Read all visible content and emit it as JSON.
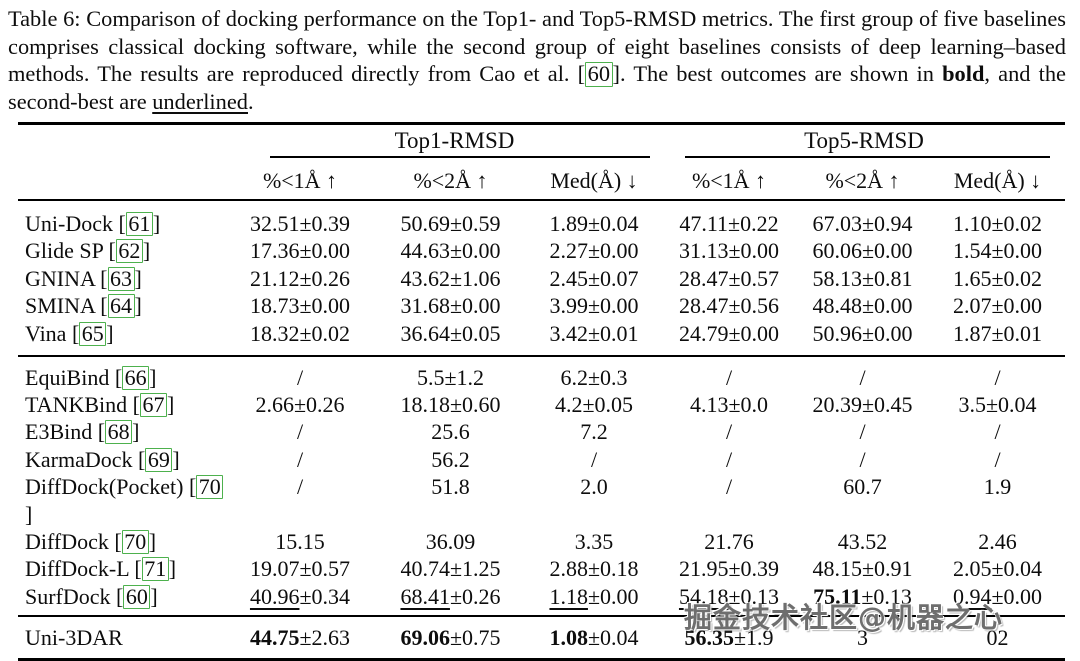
{
  "caption": {
    "part1": "Table 6: Comparison of docking performance on the Top1- and Top5-RMSD metrics. The first group of five baselines comprises classical docking software, while the second group of eight baselines consists of deep learning–based methods. The results are reproduced directly from Cao et al. ",
    "cite_open": "[",
    "cite": "60",
    "cite_close": "]",
    "part2": ". The best outcomes are shown in ",
    "bold_word": "bold",
    "part3": ", and the second-best are ",
    "underline_word": "underlined",
    "part4": "."
  },
  "table": {
    "group_headers": [
      "Top1-RMSD",
      "Top5-RMSD"
    ],
    "sub_headers": [
      "%<1Å ↑",
      "%<2Å ↑",
      "Med(Å) ↓",
      "%<1Å ↑",
      "%<2Å ↑",
      "Med(Å) ↓"
    ],
    "bracket_open": "[",
    "bracket_close": "]",
    "accent_green": "#4db14d",
    "rows": [
      {
        "group": 1,
        "name": "Uni-Dock",
        "cite": "61",
        "cells": [
          {
            "m": "32.51",
            "r": "±0.39"
          },
          {
            "m": "50.69",
            "r": "±0.59"
          },
          {
            "m": "1.89",
            "r": "±0.04"
          },
          {
            "m": "47.11",
            "r": "±0.22"
          },
          {
            "m": "67.03",
            "r": "±0.94"
          },
          {
            "m": "1.10",
            "r": "±0.02"
          }
        ]
      },
      {
        "group": 1,
        "name": "Glide SP",
        "cite": "62",
        "cells": [
          {
            "m": "17.36",
            "r": "±0.00"
          },
          {
            "m": "44.63",
            "r": "±0.00"
          },
          {
            "m": "2.27",
            "r": "±0.00"
          },
          {
            "m": "31.13",
            "r": "±0.00"
          },
          {
            "m": "60.06",
            "r": "±0.00"
          },
          {
            "m": "1.54",
            "r": "±0.00"
          }
        ]
      },
      {
        "group": 1,
        "name": "GNINA",
        "cite": "63",
        "cells": [
          {
            "m": "21.12",
            "r": "±0.26"
          },
          {
            "m": "43.62",
            "r": "±1.06"
          },
          {
            "m": "2.45",
            "r": "±0.07"
          },
          {
            "m": "28.47",
            "r": "±0.57"
          },
          {
            "m": "58.13",
            "r": "±0.81"
          },
          {
            "m": "1.65",
            "r": "±0.02"
          }
        ]
      },
      {
        "group": 1,
        "name": "SMINA",
        "cite": "64",
        "cells": [
          {
            "m": "18.73",
            "r": "±0.00"
          },
          {
            "m": "31.68",
            "r": "±0.00"
          },
          {
            "m": "3.99",
            "r": "±0.00"
          },
          {
            "m": "28.47",
            "r": "±0.56"
          },
          {
            "m": "48.48",
            "r": "±0.00"
          },
          {
            "m": "2.07",
            "r": "±0.00"
          }
        ]
      },
      {
        "group": 1,
        "name": "Vina",
        "cite": "65",
        "cells": [
          {
            "m": "18.32",
            "r": "±0.02"
          },
          {
            "m": "36.64",
            "r": "±0.05"
          },
          {
            "m": "3.42",
            "r": "±0.01"
          },
          {
            "m": "24.79",
            "r": "±0.00"
          },
          {
            "m": "50.96",
            "r": "±0.00"
          },
          {
            "m": "1.87",
            "r": "±0.01"
          }
        ]
      },
      {
        "group": 2,
        "name": "EquiBind",
        "cite": "66",
        "cells": [
          {
            "m": "/"
          },
          {
            "m": "5.5",
            "r": "±1.2"
          },
          {
            "m": "6.2",
            "r": "±0.3"
          },
          {
            "m": "/"
          },
          {
            "m": "/"
          },
          {
            "m": "/"
          }
        ]
      },
      {
        "group": 2,
        "name": "TANKBind",
        "cite": "67",
        "cells": [
          {
            "m": "2.66",
            "r": "±0.26"
          },
          {
            "m": "18.18",
            "r": "±0.60"
          },
          {
            "m": "4.2",
            "r": "±0.05"
          },
          {
            "m": "4.13",
            "r": "±0.0"
          },
          {
            "m": "20.39",
            "r": "±0.45"
          },
          {
            "m": "3.5",
            "r": "±0.04"
          }
        ]
      },
      {
        "group": 2,
        "name": "E3Bind",
        "cite": "68",
        "cells": [
          {
            "m": "/"
          },
          {
            "m": "25.6"
          },
          {
            "m": "7.2"
          },
          {
            "m": "/"
          },
          {
            "m": "/"
          },
          {
            "m": "/"
          }
        ]
      },
      {
        "group": 2,
        "name": "KarmaDock",
        "cite": "69",
        "cells": [
          {
            "m": "/"
          },
          {
            "m": "56.2"
          },
          {
            "m": "/"
          },
          {
            "m": "/"
          },
          {
            "m": "/"
          },
          {
            "m": "/"
          }
        ]
      },
      {
        "group": 2,
        "name": "DiffDock(Pocket)",
        "cite": "70",
        "cells": [
          {
            "m": "/"
          },
          {
            "m": "51.8"
          },
          {
            "m": "2.0"
          },
          {
            "m": "/"
          },
          {
            "m": "60.7"
          },
          {
            "m": "1.9"
          }
        ]
      },
      {
        "group": 2,
        "name": "DiffDock",
        "cite": "70",
        "cells": [
          {
            "m": "15.15"
          },
          {
            "m": "36.09"
          },
          {
            "m": "3.35"
          },
          {
            "m": "21.76"
          },
          {
            "m": "43.52"
          },
          {
            "m": "2.46"
          }
        ]
      },
      {
        "group": 2,
        "name": "DiffDock-L",
        "cite": "71",
        "cells": [
          {
            "m": "19.07",
            "r": "±0.57"
          },
          {
            "m": "40.74",
            "r": "±1.25"
          },
          {
            "m": "2.88",
            "r": "±0.18"
          },
          {
            "m": "21.95",
            "r": "±0.39"
          },
          {
            "m": "48.15",
            "r": "±0.91"
          },
          {
            "m": "2.05",
            "r": "±0.04"
          }
        ]
      },
      {
        "group": 2,
        "name": "SurfDock",
        "cite": "60",
        "cells": [
          {
            "m": "40.96",
            "r": "±0.34",
            "s": "u"
          },
          {
            "m": "68.41",
            "r": "±0.26",
            "s": "u"
          },
          {
            "m": "1.18",
            "r": "±0.00",
            "s": "u"
          },
          {
            "m": "54.18",
            "r": "±0.13",
            "s": "u"
          },
          {
            "m": "75.11",
            "r": "±0.13",
            "s": "b"
          },
          {
            "m": "0.94",
            "r": "±0.00",
            "s": "u"
          }
        ]
      },
      {
        "group": 3,
        "name": "Uni-3DAR",
        "cite": null,
        "cells": [
          {
            "m": "44.75",
            "r": "±2.63",
            "s": "b"
          },
          {
            "m": "69.06",
            "r": "±0.75",
            "s": "b"
          },
          {
            "m": "1.08",
            "r": "±0.04",
            "s": "b"
          },
          {
            "m": "56.35",
            "r": "±1.9",
            "s": "b"
          },
          {
            "m": "3"
          },
          {
            "m": "02"
          }
        ]
      }
    ]
  },
  "watermark": {
    "text": "掘金技术社区@机器之心"
  }
}
